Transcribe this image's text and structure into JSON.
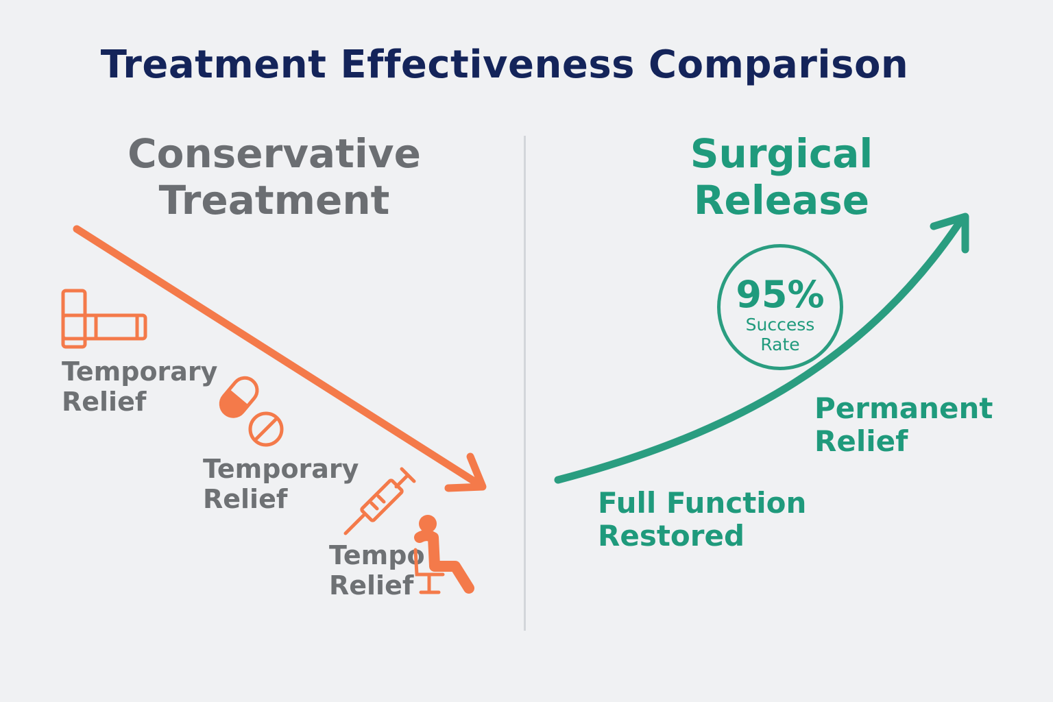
{
  "title": "Treatment Effectiveness Comparison",
  "conservative": {
    "heading_line1": "Conservative",
    "heading_line2": "Treatment",
    "color": "#f47a4a",
    "items": [
      {
        "icon": "splint-icon",
        "line1": "Temporary",
        "line2": "Relief"
      },
      {
        "icon": "pill-icon",
        "line1": "Temporary",
        "line2": "Relief"
      },
      {
        "icon": "syringe-icon",
        "line1": "Tempo",
        "line2": "Relief"
      }
    ],
    "extra_icon": "seated-person-icon"
  },
  "surgical": {
    "heading": "Surgical Release",
    "color": "#2a9d80",
    "badge": {
      "value": "95%",
      "line1": "Success",
      "line2": "Rate"
    },
    "permanent": {
      "line1": "Permanent",
      "line2": "Relief"
    },
    "function": {
      "line1": "Full Function",
      "line2": "Restored"
    }
  }
}
